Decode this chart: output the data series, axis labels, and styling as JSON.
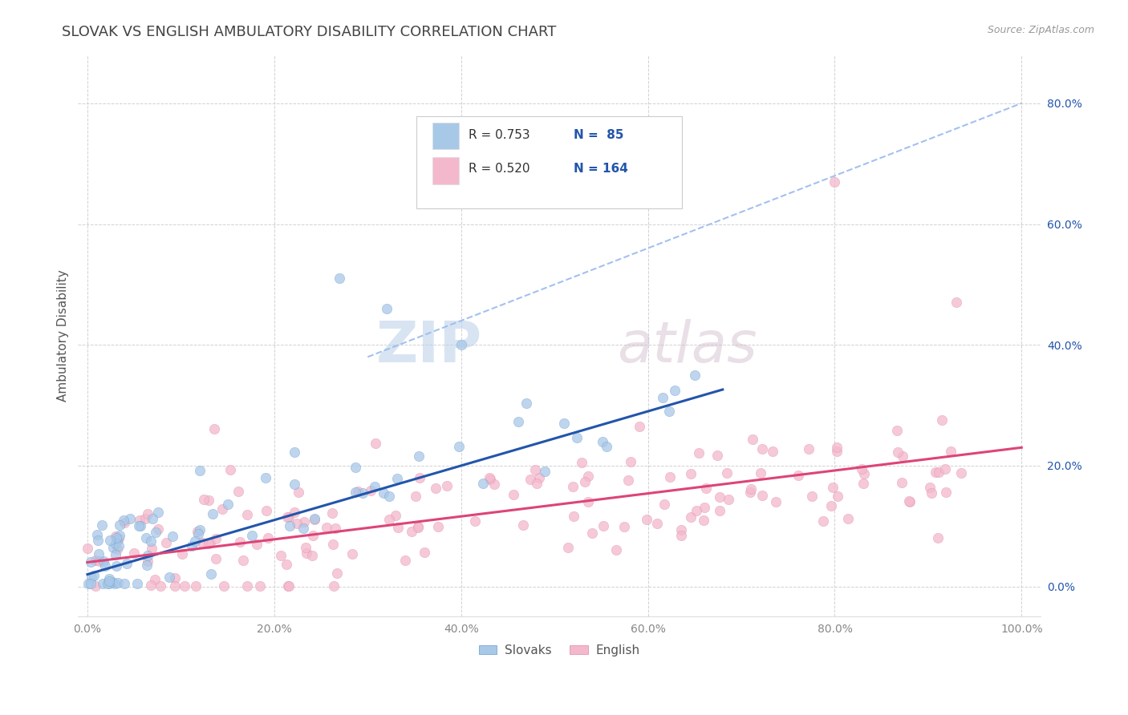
{
  "title": "SLOVAK VS ENGLISH AMBULATORY DISABILITY CORRELATION CHART",
  "source": "Source: ZipAtlas.com",
  "ylabel": "Ambulatory Disability",
  "xlim": [
    -0.01,
    1.02
  ],
  "ylim": [
    -0.05,
    0.88
  ],
  "x_ticks": [
    0.0,
    0.2,
    0.4,
    0.6,
    0.8,
    1.0
  ],
  "x_tick_labels": [
    "0.0%",
    "20.0%",
    "40.0%",
    "60.0%",
    "80.0%",
    "100.0%"
  ],
  "y_ticks": [
    0.0,
    0.2,
    0.4,
    0.6,
    0.8
  ],
  "y_tick_labels_right": [
    "0.0%",
    "20.0%",
    "40.0%",
    "60.0%",
    "80.0%"
  ],
  "slovak_fill_color": "#a8c8e8",
  "slovak_edge_color": "#6699cc",
  "english_fill_color": "#f4b8cc",
  "english_edge_color": "#dd8899",
  "line_slovak_color": "#2255aa",
  "line_english_color": "#dd4477",
  "dashed_line_color": "#99bbee",
  "R_slovak": 0.753,
  "N_slovak": 85,
  "R_english": 0.52,
  "N_english": 164,
  "legend_label_slovak": "Slovaks",
  "legend_label_english": "English",
  "watermark1": "ZIP",
  "watermark2": "atlas",
  "background_color": "#ffffff",
  "grid_color": "#cccccc",
  "title_color": "#444444",
  "axis_label_color": "#555555",
  "tick_color": "#888888",
  "stats_text_color": "#2255aa",
  "legend_box_color": "#dddddd"
}
